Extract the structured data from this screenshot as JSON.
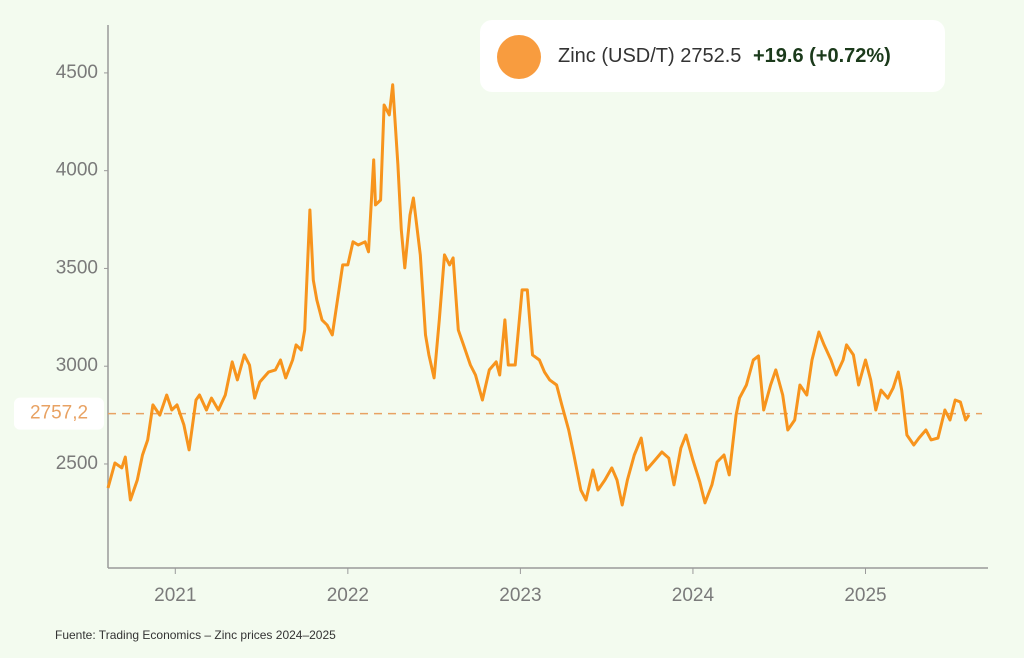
{
  "chart_data": {
    "type": "line",
    "legend": {
      "latest": 2752.5,
      "change": "+19.6 (+0.72%)"
    },
    "source": "Fuente: Trading Economics – Zinc prices 2024–2025",
    "reference": {
      "value": 2757.2,
      "label": "2757,2",
      "color": "#e8a263"
    },
    "xlim": [
      2020.61,
      2025.71
    ],
    "xticks": [
      2021,
      2022,
      2023,
      2024,
      2025
    ],
    "ylim": [
      1968,
      4745
    ],
    "yticks": [
      2500,
      3000,
      3500,
      4000,
      4500
    ],
    "x": [
      2020.61,
      2020.65,
      2020.69,
      2020.71,
      2020.74,
      2020.78,
      2020.81,
      2020.84,
      2020.87,
      2020.91,
      2020.95,
      2020.98,
      2021.01,
      2021.05,
      2021.08,
      2021.12,
      2021.14,
      2021.18,
      2021.21,
      2021.25,
      2021.29,
      2021.33,
      2021.36,
      2021.4,
      2021.43,
      2021.46,
      2021.49,
      2021.54,
      2021.58,
      2021.61,
      2021.64,
      2021.68,
      2021.7,
      2021.73,
      2021.75,
      2021.78,
      2021.8,
      2021.82,
      2021.85,
      2021.88,
      2021.91,
      2021.94,
      2021.97,
      2022.0,
      2022.03,
      2022.06,
      2022.1,
      2022.12,
      2022.15,
      2022.16,
      2022.19,
      2022.21,
      2022.24,
      2022.26,
      2022.29,
      2022.31,
      2022.33,
      2022.36,
      2022.38,
      2022.42,
      2022.45,
      2022.47,
      2022.5,
      2022.53,
      2022.56,
      2022.59,
      2022.61,
      2022.64,
      2022.67,
      2022.71,
      2022.74,
      2022.78,
      2022.82,
      2022.86,
      2022.88,
      2022.91,
      2022.93,
      2022.97,
      2023.01,
      2023.04,
      2023.07,
      2023.11,
      2023.14,
      2023.17,
      2023.21,
      2023.24,
      2023.28,
      2023.31,
      2023.35,
      2023.38,
      2023.42,
      2023.45,
      2023.49,
      2023.53,
      2023.56,
      2023.59,
      2023.62,
      2023.66,
      2023.7,
      2023.73,
      2023.78,
      2023.82,
      2023.86,
      2023.89,
      2023.93,
      2023.96,
      2024.0,
      2024.04,
      2024.07,
      2024.11,
      2024.14,
      2024.18,
      2024.21,
      2024.25,
      2024.27,
      2024.31,
      2024.35,
      2024.38,
      2024.41,
      2024.45,
      2024.48,
      2024.52,
      2024.55,
      2024.59,
      2024.62,
      2024.66,
      2024.69,
      2024.73,
      2024.76,
      2024.8,
      2024.83,
      2024.87,
      2024.89,
      2024.93,
      2024.96,
      2025.0,
      2025.03,
      2025.06,
      2025.09,
      2025.13,
      2025.16,
      2025.19,
      2025.21,
      2025.24,
      2025.28,
      2025.31,
      2025.35,
      2025.38,
      2025.42,
      2025.46,
      2025.49,
      2025.52,
      2025.55,
      2025.58,
      2025.6
    ],
    "series": [
      {
        "name": "Zinc (USD/T)",
        "color": "#f7941d",
        "marker_color": "#f89c3f",
        "values": [
          2377,
          2505,
          2480,
          2535,
          2316,
          2418,
          2546,
          2623,
          2802,
          2750,
          2853,
          2776,
          2802,
          2700,
          2572,
          2827,
          2853,
          2776,
          2837,
          2776,
          2853,
          3022,
          2930,
          3058,
          3006,
          2837,
          2919,
          2970,
          2981,
          3032,
          2940,
          3032,
          3109,
          3083,
          3185,
          3799,
          3441,
          3339,
          3237,
          3211,
          3160,
          3339,
          3518,
          3518,
          3636,
          3620,
          3636,
          3585,
          4055,
          3825,
          3850,
          4336,
          4285,
          4439,
          4030,
          3697,
          3503,
          3774,
          3860,
          3569,
          3160,
          3058,
          2940,
          3237,
          3569,
          3518,
          3554,
          3185,
          3109,
          3006,
          2955,
          2827,
          2981,
          3022,
          2955,
          3237,
          3006,
          3006,
          3390,
          3390,
          3058,
          3032,
          2970,
          2930,
          2904,
          2802,
          2674,
          2546,
          2367,
          2316,
          2469,
          2367,
          2418,
          2480,
          2418,
          2290,
          2418,
          2546,
          2633,
          2469,
          2520,
          2561,
          2530,
          2393,
          2582,
          2648,
          2520,
          2408,
          2301,
          2393,
          2510,
          2546,
          2444,
          2751,
          2837,
          2904,
          3032,
          3052,
          2776,
          2904,
          2981,
          2853,
          2674,
          2725,
          2904,
          2853,
          3032,
          3175,
          3109,
          3032,
          2955,
          3032,
          3109,
          3058,
          2904,
          3032,
          2930,
          2776,
          2878,
          2837,
          2888,
          2970,
          2878,
          2648,
          2597,
          2633,
          2674,
          2623,
          2633,
          2776,
          2725,
          2827,
          2817,
          2725,
          2751
        ]
      }
    ]
  }
}
